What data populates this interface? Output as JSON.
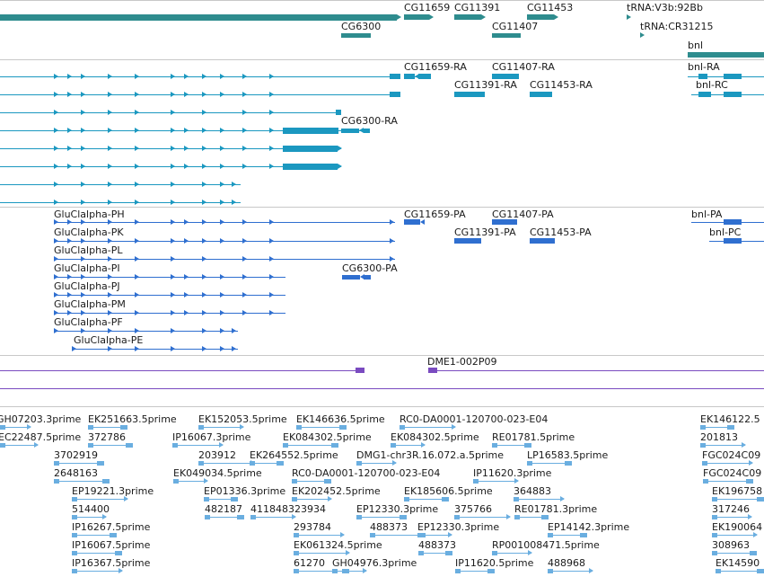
{
  "colors": {
    "gene": "#2e8c8e",
    "transcript": "#1b98c0",
    "protein": "#2f6fd0",
    "clone": "#7a4bc0",
    "est": "#6aaee0",
    "separator": "#c8c8c8"
  },
  "tracks": {
    "genes": {
      "features": [
        {
          "label": "CG11659"
        },
        {
          "label": "CG11391"
        },
        {
          "label": "CG11453"
        },
        {
          "label": "tRNA:V3b:92Bb"
        },
        {
          "label": "CG6300"
        },
        {
          "label": "CG11407"
        },
        {
          "label": "tRNA:CR31215"
        },
        {
          "label": "bnl"
        }
      ]
    },
    "transcripts": {
      "features": [
        {
          "label": "CG11659-RA"
        },
        {
          "label": "CG11407-RA"
        },
        {
          "label": "bnl-RA"
        },
        {
          "label": "CG11391-RA"
        },
        {
          "label": "CG11453-RA"
        },
        {
          "label": "bnl-RC"
        },
        {
          "label": "CG6300-RA"
        }
      ]
    },
    "proteins": {
      "features": [
        {
          "label": "GluClalpha-PH"
        },
        {
          "label": "CG11659-PA"
        },
        {
          "label": "CG11407-PA"
        },
        {
          "label": "bnl-PA"
        },
        {
          "label": "GluClalpha-PK"
        },
        {
          "label": "CG11391-PA"
        },
        {
          "label": "CG11453-PA"
        },
        {
          "label": "bnl-PC"
        },
        {
          "label": "GluClalpha-PL"
        },
        {
          "label": "GluClalpha-PI"
        },
        {
          "label": "CG6300-PA"
        },
        {
          "label": "GluClalpha-PJ"
        },
        {
          "label": "GluClalpha-PM"
        },
        {
          "label": "GluClalpha-PF"
        },
        {
          "label": "GluClalpha-PE"
        }
      ]
    },
    "clones": {
      "features": [
        {
          "label": "DME1-002P09"
        }
      ]
    },
    "ests": {
      "features": [
        {
          "label": "GH07203.3prime"
        },
        {
          "label": "EK251663.5prime"
        },
        {
          "label": "EK152053.5prime"
        },
        {
          "label": "EK146636.5prime"
        },
        {
          "label": "RC0-DA0001-120700-023-E04"
        },
        {
          "label": "EK146122.5"
        },
        {
          "label": "EC22487.5prime"
        },
        {
          "label": "372786"
        },
        {
          "label": "IP16067.3prime"
        },
        {
          "label": "EK084302.5prime"
        },
        {
          "label": "EK084302.5prime"
        },
        {
          "label": "RE01781.5prime"
        },
        {
          "label": "201813"
        },
        {
          "label": "3702919"
        },
        {
          "label": "203912"
        },
        {
          "label": "EK264552.5prime"
        },
        {
          "label": "DMG1-chr3R.16.072.a.5prime"
        },
        {
          "label": "LP16583.5prime"
        },
        {
          "label": "FGC024C09"
        },
        {
          "label": "2648163"
        },
        {
          "label": "EK049034.5prime"
        },
        {
          "label": "RC0-DA0001-120700-023-E04"
        },
        {
          "label": "IP11620.3prime"
        },
        {
          "label": "FGC024C09"
        },
        {
          "label": "EP19221.3prime"
        },
        {
          "label": "EP01336.3prime"
        },
        {
          "label": "EK202452.5prime"
        },
        {
          "label": "EK185606.5prime"
        },
        {
          "label": "364883"
        },
        {
          "label": "EK196758"
        },
        {
          "label": "514400"
        },
        {
          "label": "482187"
        },
        {
          "label": "411848323934"
        },
        {
          "label": "EP12330.3prime"
        },
        {
          "label": "375766"
        },
        {
          "label": "RE01781.3prime"
        },
        {
          "label": "317246"
        },
        {
          "label": "IP16267.5prime"
        },
        {
          "label": "293784"
        },
        {
          "label": "488373"
        },
        {
          "label": "EP12330.3prime"
        },
        {
          "label": "EP14142.3prime"
        },
        {
          "label": "EK190064"
        },
        {
          "label": "IP16067.5prime"
        },
        {
          "label": "EK061324.5prime"
        },
        {
          "label": "488373"
        },
        {
          "label": "RP001008471.5prime"
        },
        {
          "label": "308963"
        },
        {
          "label": "IP16367.5prime"
        },
        {
          "label": "61270"
        },
        {
          "label": "GH04976.3prime"
        },
        {
          "label": "IP11620.5prime"
        },
        {
          "label": "488968"
        },
        {
          "label": "EK14590"
        }
      ]
    }
  }
}
